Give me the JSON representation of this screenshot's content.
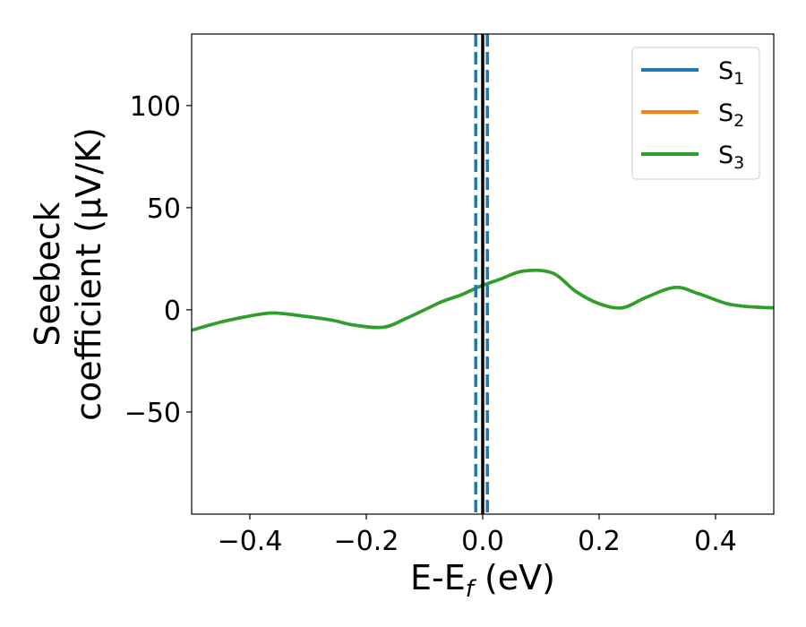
{
  "chart_data": {
    "type": "line",
    "xlabel_main": "E-E",
    "xlabel_sub": "f",
    "xlabel_unit": " (eV)",
    "ylabel_line1": "Seebeck",
    "ylabel_line2": "coefficient  (μV/K)",
    "xlim": [
      -0.5,
      0.5
    ],
    "ylim": [
      -100,
      135
    ],
    "xticks": [
      -0.4,
      -0.2,
      0.0,
      0.2,
      0.4
    ],
    "xtick_labels": [
      "−0.4",
      "−0.2",
      "0.0",
      "0.2",
      "0.4"
    ],
    "yticks": [
      -50,
      0,
      50,
      100
    ],
    "ytick_labels": [
      "−50",
      "0",
      "50",
      "100"
    ],
    "legend_position": "top-right",
    "vertical_lines": [
      {
        "x": -0.012,
        "color": "#1f77b4",
        "style": "dashed"
      },
      {
        "x": 0.0,
        "color": "#000000",
        "style": "solid"
      },
      {
        "x": 0.008,
        "color": "#1f77b4",
        "style": "dashed"
      }
    ],
    "x": [
      -0.5,
      -0.45,
      -0.4,
      -0.36,
      -0.31,
      -0.26,
      -0.22,
      -0.17,
      -0.13,
      -0.1,
      -0.07,
      -0.04,
      -0.02,
      0.0,
      0.03,
      0.07,
      0.12,
      0.16,
      0.2,
      0.24,
      0.28,
      0.33,
      0.37,
      0.42,
      0.46,
      0.5
    ],
    "series": [
      {
        "name": "S",
        "sub": "1",
        "color": "#1f77b4",
        "values": [
          -10,
          -6,
          -3,
          -1.5,
          -3,
          -5,
          -7.5,
          -8.5,
          -4,
          0,
          4,
          7,
          9.5,
          12,
          15,
          19,
          18,
          9,
          3,
          1,
          6,
          11,
          8,
          3,
          1.5,
          1
        ]
      },
      {
        "name": "S",
        "sub": "2",
        "color": "#ff7f0e",
        "values": [
          -10,
          -6,
          -3,
          -1.5,
          -3,
          -5,
          -7.5,
          -8.5,
          -4,
          0,
          4,
          7,
          9.5,
          12,
          15,
          19,
          18,
          9,
          3,
          1,
          6,
          11,
          8,
          3,
          1.5,
          1
        ]
      },
      {
        "name": "S",
        "sub": "3",
        "color": "#2ca02c",
        "values": [
          -10,
          -6,
          -3,
          -1.5,
          -3,
          -5,
          -7.5,
          -8.5,
          -4,
          0,
          4,
          7,
          9.5,
          12,
          15,
          19,
          18,
          9,
          3,
          1,
          6,
          11,
          8,
          3,
          1.5,
          1
        ]
      }
    ]
  }
}
